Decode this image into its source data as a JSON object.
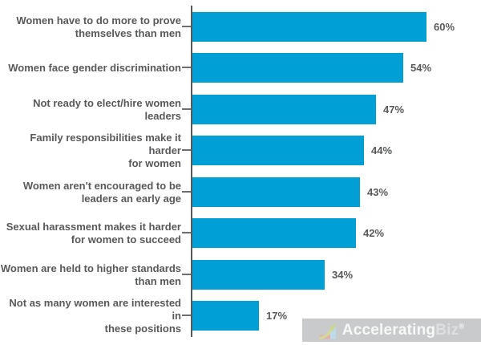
{
  "chart_data": {
    "type": "bar",
    "orientation": "horizontal",
    "title": "",
    "xlabel": "",
    "ylabel": "",
    "xlim": [
      0,
      74
    ],
    "grid": false,
    "legend": false,
    "bar_color": "#00A0D6",
    "axis_color": "#58595B",
    "text_color": "#58595B",
    "categories": [
      "Women have to do more to prove\nthemselves than men",
      "Women face gender discrimination",
      "Not ready to elect/hire women leaders",
      "Family responsibilities make it harder\nfor women",
      "Women aren't encouraged to be\nleaders an early age",
      "Sexual harassment makes it harder\nfor women to succeed",
      "Women are held to higher standards\nthan men",
      "Not as many women are interested in\nthese positions"
    ],
    "values": [
      60,
      54,
      47,
      44,
      43,
      42,
      34,
      17
    ],
    "value_labels": [
      "60%",
      "54%",
      "47%",
      "44%",
      "43%",
      "42%",
      "34%",
      "17%"
    ]
  },
  "branding": {
    "name": "AcceleratingBiz",
    "text_primary": "Accelerating",
    "text_secondary": "Biz",
    "registered_mark": "®",
    "band_color": "#C9CACC",
    "icon": "growth-chart-arrow-icon"
  }
}
